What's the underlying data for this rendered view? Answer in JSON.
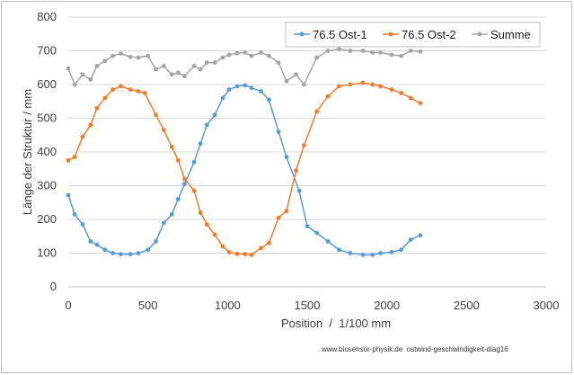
{
  "chart_data": {
    "type": "line",
    "xlabel": "Position  /  1/100 mm",
    "ylabel": "Länge der Struktur / mm",
    "xlim": [
      0,
      3000
    ],
    "ylim": [
      0,
      800
    ],
    "x_ticks": [
      0,
      500,
      1000,
      1500,
      2000,
      2500,
      3000
    ],
    "y_ticks": [
      0,
      100,
      200,
      300,
      400,
      500,
      600,
      700,
      800
    ],
    "grid": "horizontal",
    "legend_position": "top-right",
    "footer": "www.biosensor-physik.de  ostwind-geschwindigkeit-diag16",
    "series": [
      {
        "name": "76.5 Ost-1",
        "color": "#5b9bd5",
        "x": [
          0,
          40,
          90,
          140,
          180,
          230,
          280,
          330,
          390,
          440,
          500,
          550,
          600,
          650,
          690,
          730,
          790,
          830,
          870,
          920,
          970,
          1010,
          1060,
          1110,
          1150,
          1210,
          1260,
          1320,
          1370,
          1450,
          1500,
          1560,
          1630,
          1700,
          1770,
          1850,
          1910,
          1960,
          2030,
          2090,
          2150,
          2210
        ],
        "y": [
          272,
          215,
          185,
          135,
          125,
          110,
          100,
          97,
          97,
          100,
          110,
          135,
          190,
          215,
          260,
          305,
          370,
          425,
          480,
          510,
          560,
          585,
          595,
          598,
          590,
          580,
          555,
          460,
          385,
          285,
          180,
          160,
          135,
          110,
          100,
          95,
          95,
          100,
          103,
          110,
          140,
          153
        ]
      },
      {
        "name": "76.5 Ost-2",
        "color": "#ed7d31",
        "x": [
          0,
          40,
          90,
          140,
          180,
          230,
          280,
          330,
          390,
          440,
          480,
          550,
          600,
          650,
          690,
          730,
          790,
          830,
          870,
          920,
          970,
          1010,
          1060,
          1110,
          1150,
          1210,
          1260,
          1320,
          1370,
          1430,
          1480,
          1560,
          1630,
          1700,
          1770,
          1850,
          1910,
          1960,
          2030,
          2090,
          2150,
          2210
        ],
        "y": [
          375,
          385,
          445,
          480,
          530,
          560,
          585,
          595,
          585,
          580,
          575,
          510,
          465,
          415,
          375,
          320,
          285,
          220,
          185,
          155,
          120,
          103,
          98,
          97,
          95,
          115,
          130,
          205,
          225,
          345,
          420,
          520,
          565,
          595,
          600,
          605,
          600,
          595,
          585,
          575,
          560,
          545
        ]
      },
      {
        "name": "Summe",
        "color": "#a5a5a5",
        "x": [
          0,
          40,
          90,
          140,
          180,
          230,
          280,
          330,
          390,
          440,
          500,
          550,
          600,
          650,
          690,
          730,
          790,
          830,
          870,
          920,
          970,
          1010,
          1060,
          1110,
          1150,
          1210,
          1260,
          1320,
          1370,
          1430,
          1480,
          1560,
          1630,
          1700,
          1770,
          1850,
          1910,
          1960,
          2030,
          2090,
          2150,
          2210
        ],
        "y": [
          648,
          600,
          630,
          615,
          655,
          670,
          685,
          692,
          682,
          680,
          685,
          645,
          655,
          630,
          635,
          625,
          655,
          645,
          665,
          665,
          680,
          688,
          693,
          695,
          685,
          695,
          685,
          665,
          610,
          630,
          600,
          680,
          700,
          705,
          700,
          700,
          695,
          695,
          688,
          685,
          700,
          698
        ]
      }
    ]
  }
}
